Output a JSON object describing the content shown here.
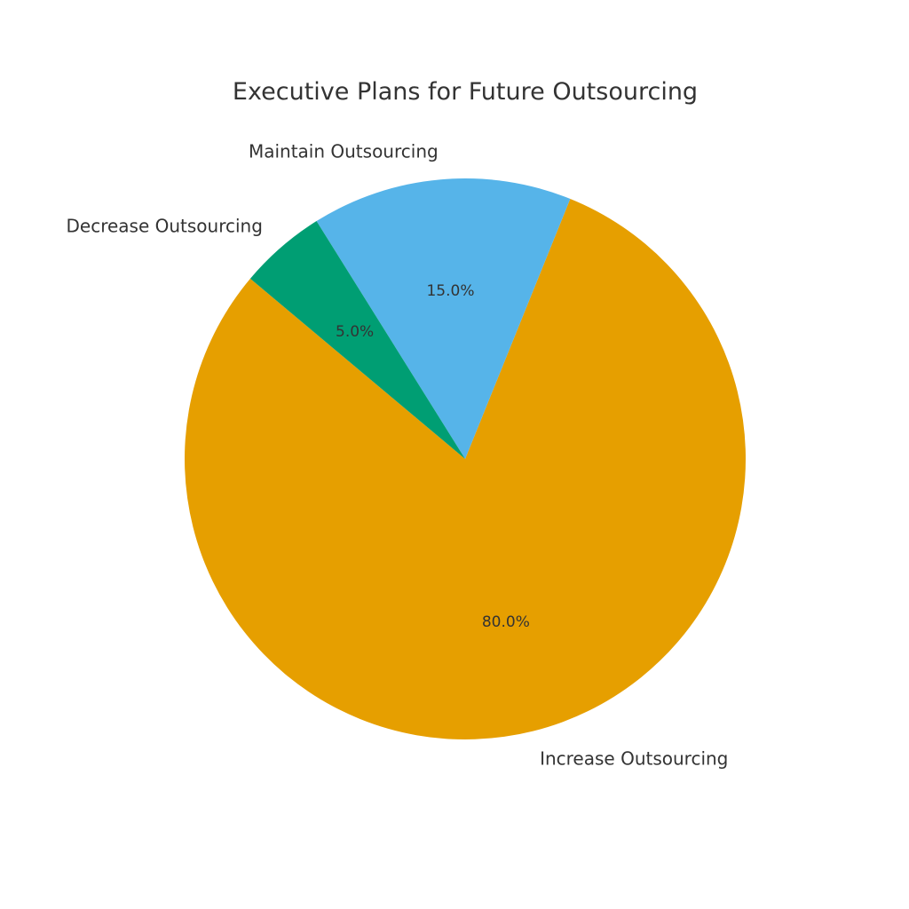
{
  "chart_data": {
    "type": "pie",
    "title": "Executive Plans for Future Outsourcing",
    "slices": [
      {
        "label": "Increase Outsourcing",
        "value": 80.0,
        "pct_label": "80.0%",
        "color": "#E69F00"
      },
      {
        "label": "Maintain Outsourcing",
        "value": 15.0,
        "pct_label": "15.0%",
        "color": "#56B4E9"
      },
      {
        "label": "Decrease Outsourcing",
        "value": 5.0,
        "pct_label": "5.0%",
        "color": "#009E73"
      }
    ],
    "start_angle_deg": 140,
    "direction": "counterclockwise",
    "legend": "none"
  }
}
